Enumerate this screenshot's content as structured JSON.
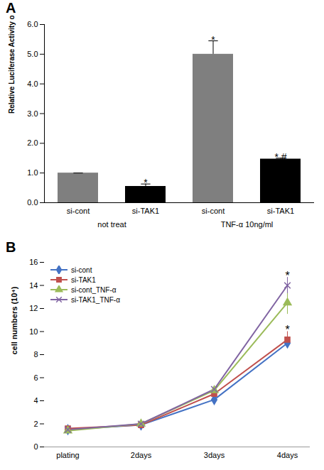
{
  "chart_data": [
    {
      "type": "bar",
      "title": "A",
      "y_label": "Relative Luciferase Activity of NF-kB construct",
      "categories": [
        "si-cont",
        "si-TAK1",
        "si-cont",
        "si-TAK1"
      ],
      "x_groups": [
        "not treat",
        "not treat",
        "TNF-α 10ng/ml",
        "TNF-α 10ng/ml"
      ],
      "values": [
        1.0,
        0.55,
        5.0,
        1.47
      ],
      "errors": [
        0.0,
        0.08,
        0.45,
        0.03
      ],
      "colors": [
        "#7f7f7f",
        "#000000",
        "#7f7f7f",
        "#000000"
      ],
      "ylim": [
        0,
        6
      ],
      "yticks": [
        {
          "value": 0,
          "label": "0.0"
        },
        {
          "value": 1,
          "label": "1.0"
        },
        {
          "value": 2,
          "label": "2.0"
        },
        {
          "value": 3,
          "label": "3.0"
        },
        {
          "value": 4,
          "label": "4.0"
        },
        {
          "value": 5,
          "label": "5.0"
        },
        {
          "value": 6,
          "label": "6.0"
        }
      ],
      "grid": false,
      "annotations": [
        {
          "text": "*",
          "x": 1,
          "y": 0.65
        },
        {
          "text": "*",
          "x": 2,
          "y": 5.47
        },
        {
          "text": "*,#",
          "x": 3,
          "y": 1.52
        }
      ]
    },
    {
      "type": "line",
      "title": "B",
      "y_label": "cell numbers (10⁴)",
      "categories": [
        "plating",
        "2days",
        "3days",
        "4days"
      ],
      "series": [
        {
          "name": "si-cont",
          "color": "#4472c4",
          "marker": "diamond",
          "values": [
            1.5,
            1.9,
            4.1,
            9.0
          ],
          "errors": [
            0.1,
            0.1,
            0.2,
            0.3
          ]
        },
        {
          "name": "si-TAK1",
          "color": "#c0504d",
          "marker": "square",
          "values": [
            1.6,
            1.9,
            4.6,
            9.3
          ],
          "errors": [
            0.1,
            0.1,
            0.3,
            0.7
          ]
        },
        {
          "name": "si-cont_TNF-α",
          "color": "#9bbb59",
          "marker": "triangle",
          "values": [
            1.4,
            2.0,
            4.9,
            12.5
          ],
          "errors": [
            0.1,
            0.1,
            0.3,
            1.0
          ]
        },
        {
          "name": "si-TAK1_TNF-α",
          "color": "#8064a2",
          "marker": "x",
          "values": [
            1.5,
            2.0,
            5.0,
            14.0
          ],
          "errors": [
            0.1,
            0.1,
            0.3,
            0.7
          ]
        }
      ],
      "ylim": [
        0,
        16
      ],
      "yticks": [
        0,
        2,
        4,
        6,
        8,
        10,
        12,
        14,
        16
      ],
      "grid": false,
      "legend": "upper left",
      "annotations": [
        {
          "text": "*",
          "x": "4days",
          "y": 14.8
        },
        {
          "text": "*",
          "x": "4days",
          "y": 10.1
        }
      ]
    }
  ]
}
